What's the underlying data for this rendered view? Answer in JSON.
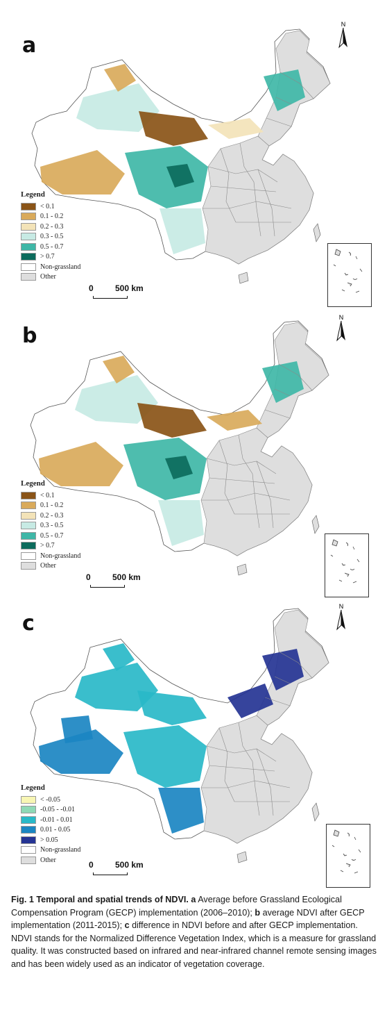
{
  "panels": [
    {
      "letter": "a",
      "legend": {
        "title": "Legend",
        "items": [
          {
            "label": "< 0.1",
            "color": "#8a5417"
          },
          {
            "label": "0.1 - 0.2",
            "color": "#d9aa5b"
          },
          {
            "label": "0.2 - 0.3",
            "color": "#f3e3b8"
          },
          {
            "label": "0.3 - 0.5",
            "color": "#c7eae4"
          },
          {
            "label": "0.5 - 0.7",
            "color": "#3fb7a7"
          },
          {
            "label": "> 0.7",
            "color": "#0c6b5c"
          },
          {
            "label": "Non-grassland",
            "color": "#ffffff"
          },
          {
            "label": "Other",
            "color": "#dedede"
          }
        ]
      },
      "scale": {
        "zero": "0",
        "distance": "500 km"
      },
      "north": "N"
    },
    {
      "letter": "b",
      "legend": {
        "title": "Legend",
        "items": [
          {
            "label": "< 0.1",
            "color": "#8a5417"
          },
          {
            "label": "0.1 - 0.2",
            "color": "#d9aa5b"
          },
          {
            "label": "0.2 - 0.3",
            "color": "#f3e3b8"
          },
          {
            "label": "0.3 - 0.5",
            "color": "#c7eae4"
          },
          {
            "label": "0.5 - 0.7",
            "color": "#3fb7a7"
          },
          {
            "label": "> 0.7",
            "color": "#0c6b5c"
          },
          {
            "label": "Non-grassland",
            "color": "#ffffff"
          },
          {
            "label": "Other",
            "color": "#dedede"
          }
        ]
      },
      "scale": {
        "zero": "0",
        "distance": "500 km"
      },
      "north": "N"
    },
    {
      "letter": "c",
      "legend": {
        "title": "Legend",
        "items": [
          {
            "label": "< -0.05",
            "color": "#f8f6b4"
          },
          {
            "label": "-0.05 - -0.01",
            "color": "#8fd9b6"
          },
          {
            "label": "-0.01 - 0.01",
            "color": "#29b9c8"
          },
          {
            "label": "0.01 - 0.05",
            "color": "#1b86c2"
          },
          {
            "label": "> 0.05",
            "color": "#253494"
          },
          {
            "label": "Non-grassland",
            "color": "#ffffff"
          },
          {
            "label": "Other",
            "color": "#dedede"
          }
        ]
      },
      "scale": {
        "zero": "0",
        "distance": "500 km"
      },
      "north": "N"
    }
  ],
  "caption": {
    "fig_label": "Fig. 1 Temporal and spatial trends of NDVI.",
    "a_letter": "a",
    "a_text": "Average before Grassland Ecological Compensation Program (GECP) implementation (2006–2010);",
    "b_letter": "b",
    "b_text": "average NDVI after GECP implementation (2011-2015);",
    "c_letter": "c",
    "c_text": "difference in NDVI before and after GECP implementation. NDVI stands for the Normalized Difference Vegetation Index, which is a measure for grassland quality. It was constructed based on infrared and near-infrared channel remote sensing images and has been widely used as an indicator of vegetation coverage."
  }
}
